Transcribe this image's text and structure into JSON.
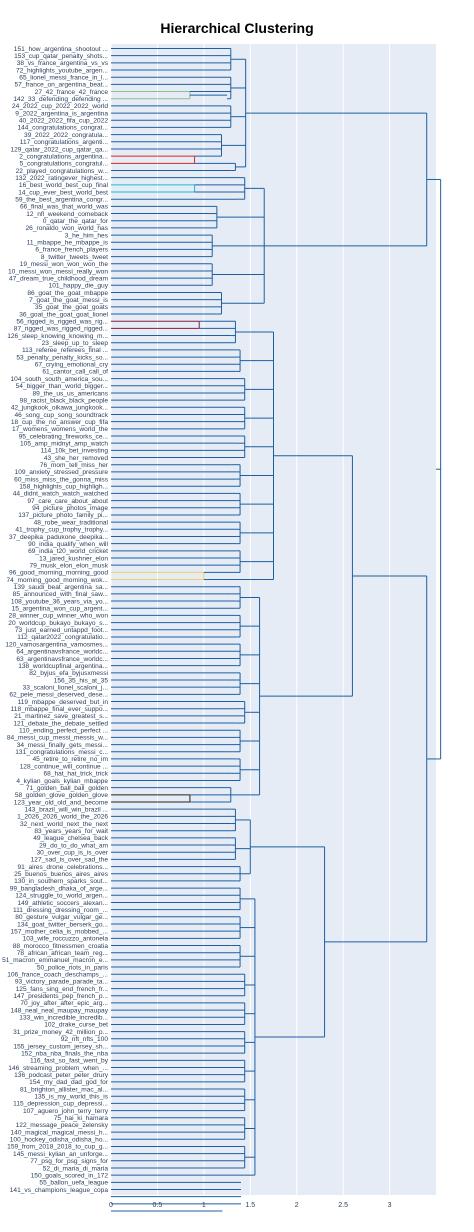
{
  "chart_data": {
    "type": "dendrogram",
    "title": "Hierarchical Clustering",
    "xlim": [
      0,
      3.5
    ],
    "xticks": [
      0,
      0.5,
      1,
      1.5,
      2,
      2.5,
      3
    ],
    "xtick_labels": [
      "0",
      "0.5",
      "1",
      "1.5",
      "2",
      "2.5",
      "3"
    ],
    "grid": true,
    "colors": {
      "plot_bg": "#e5ecf6",
      "grid": "#ffffff",
      "link": "#1f5fa0",
      "red": "#d62728",
      "cyan": "#17becf",
      "olive": "#8fbc8f",
      "maroon": "#8b1a3a",
      "gold": "#f0d060",
      "black": "#222222"
    },
    "leaves": [
      "151_how_argentina_shootout ...",
      "153_cup_qatar_penalty_shots...",
      "38_vs_france_argentina_vs_vs",
      "72_highlights_youtube_argen...",
      "65_lionel_messi_france_in_l...",
      "57_france_on_argentina_beat...",
      "27_42_france_42_france",
      "142_33_defending_defending ...",
      "24_2022_cup_2022_2022_world",
      "9_2022_argentina_is_argentina",
      "40_2022_2022_fifa_cup_2022",
      "144_congratulations_congrat...",
      "39_2022_2022_congratula...",
      "117_congratulations_argenti...",
      "129_qatar_2022_cup_qatar_qa...",
      "2_congratulations_argentina...",
      "5_congratulations_congratul...",
      "22_played_congratulations_w...",
      "132_2022_ratingever_highest...",
      "16_best_world_best_cup_final",
      "14_cup_ever_best_world_best",
      "59_the_best_argentina_congr...",
      "66_final_was_that_world_was",
      "12_nfl_weekend_comeback",
      "0_qatar_the_qatar_for",
      "26_ronaldo_won_world_has",
      "3_he_him_hes",
      "11_mbappe_he_mbappe_is",
      "6_france_french_players",
      "8_twitter_tweets_tweet",
      "19_messi_won_won_won_the",
      "10_messi_won_messi_really_won",
      "47_dream_true_childhood_dream",
      "101_happy_die_guy",
      "86_goat_the_goat_mbappe",
      "7_goat_the_goat_messi_is",
      "35_goat_the_goat_goats",
      "36_goat_the_goat_goat_lionel",
      "56_rigged_is_rigged_was_rig...",
      "87_rigged_was_rigged_rigged...",
      "126_sleep_knowing_knowing_m...",
      "23_sleep_up_to_sleep",
      "113_referee_referees_final ...",
      "53_penalty_penalty_kicks_so...",
      "67_crying_emotional_cry",
      "61_cantor_call_call_of",
      "104_south_south_america_sou...",
      "54_bigger_than_world_bigger...",
      "89_the_us_us_americans",
      "98_racist_black_black_people",
      "42_jungkook_oikawa_jungkook...",
      "46_song_cup_song_soundtrack",
      "18_cup_the_no_answer_cup_fifa",
      "17_womens_womens_world_the",
      "95_celebrating_fireworks_ce...",
      "105_amp_midnyt_amp_watch",
      "114_10k_bet_investing",
      "43_she_her_removed",
      "76_mom_tell_miss_her",
      "109_anxiety_stressed_pressure",
      "60_miss_miss_the_gonna_miss",
      "158_highlights_cup_highligh...",
      "44_didnt_watch_watch_watched",
      "97_care_care_about_about",
      "94_picture_photos_image",
      "137_picture_photo_family_pi...",
      "48_robe_wear_traditional",
      "41_trophy_cup_trophy_trophy...",
      "37_deepika_padukone_deepika...",
      "90_india_qualify_when_will",
      "69_india_t20_world_cricket",
      "13_jared_kushner_elon",
      "79_musk_elon_elon_musk",
      "96_good_morning_morning_good",
      "74_morning_good_morning_wok...",
      "139_saudi_beat_argentina_sa...",
      "85_announced_with_final_saw...",
      "108_youtube_36_years_via_yo...",
      "15_argentina_won_cup_argent...",
      "28_winner_cup_winner_who_won",
      "20_worldcup_bukayo_bukayo_s...",
      "73_just_earned_untappd_foot...",
      "112_qatar2022_congratulatio...",
      "120_vamosargentina_vamosmes...",
      "64_argentinavsfrance_worldc...",
      "63_argentinavsfrance_worldc...",
      "138_worldcupfinal_argentina...",
      "82_byjus_efa_byjusxmessi",
      "156_35_his_at_35",
      "33_scaloni_lionel_scaloni_j...",
      "62_pele_messi_deserved_dese...",
      "119_mbappe_deserved_but_in",
      "118_mbappe_final_ever_suppo...",
      "21_martinez_save_greatest_s...",
      "121_debate_the_debate_settled",
      "110_ending_perfect_perfect ...",
      "84_messi_cup_messi_messis_w...",
      "34_messi_finally_gets_messi...",
      "131_congratulations_messi_c...",
      "45_retire_to_retire_no_im",
      "128_continue_will_continue ...",
      "68_hat_hat_trick_trick",
      "4_kylian_goals_kylian_mbappe",
      "71_golden_ball_ball_golden",
      "58_golden_glove_golden_glove",
      "123_year_old_old_and_become",
      "143_brazil_will_win_brazil ...",
      "1_2026_2026_world_the_2026",
      "32_next_world_next_the_next",
      "83_years_years_for_wait",
      "49_league_chelsea_back",
      "29_do_to_do_what_am",
      "30_over_cup_is_is_over",
      "127_sad_is_over_sad_the",
      "91_aires_drone_celebrations...",
      "25_buenos_buenos_aires_aires",
      "130_in_southern_sparks_sout...",
      "99_bangladesh_dhaka_of_arge...",
      "124_struggle_to_world_argen...",
      "149_athletic_soccers_alexan...",
      "111_dressing_dressing_room_...",
      "80_gesture_vulgar_vulgar_ge...",
      "134_goat_twitter_berserk_go...",
      "157_mother_celia_is_mobbed_...",
      "103_wife_roccuzzo_antonela",
      "88_morocco_fitnessmen_croatia",
      "78_african_african_team_reg...",
      "51_macron_emmanuel_macron_e...",
      "50_police_riots_in_paris",
      "106_france_coach_deschamps_...",
      "93_victory_parade_parade_ta...",
      "125_fans_sing_end_french_fr...",
      "147_presidents_pep_french_p...",
      "70_joy_after_after_epic_arg...",
      "148_neal_neal_maupay_maupay",
      "133_win_incredible_incredib...",
      "102_drake_curse_bet",
      "31_prize_money_42_million_p...",
      "92_nft_nfts_100",
      "155_jersey_custom_jersey_sh...",
      "152_nba_nba_finals_the_nba",
      "116_fast_so_fast_went_by",
      "146_streaming_problem_when_...",
      "136_podcast_peter_peter_drury",
      "154_my_dad_dad_god_for",
      "81_brighton_allister_mac_al...",
      "135_is_my_world_this_is",
      "115_depression_cup_depressi...",
      "107_aguero_john_terry_terry",
      "75_hai_ki_hamara",
      "122_message_peace_zelensky",
      "140_magical_magical_messi_h...",
      "100_hockey_odisha_odisha_ho...",
      "159_from_2018_2018_to_cup_g...",
      "145_messi_kylian_an_unforge...",
      "77_psg_for_psg_signs_for",
      "52_di_maria_di_maria",
      "150_goals_scored_in_172",
      "55_ballon_uefa_league",
      "141_vs_champions_league_copa"
    ],
    "leaf_stems": [
      1.25,
      1.1,
      1.05,
      1.25,
      1.1,
      1.05,
      0.85,
      1.25,
      1.25,
      1.1,
      1.2,
      1.05,
      1.15,
      1.1,
      1.05,
      0.9,
      0.9,
      1.3,
      1.4,
      0.9,
      0.9,
      1.35,
      1.1,
      1.05,
      1.1,
      1.1,
      1.05,
      1.05,
      1.05,
      1.05,
      1.05,
      1.05,
      1.05,
      1.0,
      1.05,
      1.05,
      1.1,
      1.15,
      0.95,
      0.95,
      1.3,
      1.2,
      1.35,
      1.35,
      1.35,
      1.35,
      1.4,
      1.4,
      1.4,
      1.4,
      1.4,
      1.4,
      1.4,
      1.4,
      1.4,
      1.35,
      1.35,
      1.25,
      1.3,
      1.35,
      1.35,
      1.35,
      1.35,
      1.35,
      1.35,
      1.35,
      1.35,
      1.35,
      1.35,
      1.35,
      1.35,
      1.1,
      1.1,
      1.0,
      1.0,
      1.35,
      1.3,
      1.35,
      1.35,
      1.35,
      1.35,
      1.35,
      1.35,
      1.35,
      1.35,
      1.35,
      1.35,
      1.35,
      1.35,
      1.3,
      1.35,
      1.4,
      1.35,
      1.35,
      1.35,
      1.35,
      1.35,
      1.35,
      1.3,
      1.35,
      1.35,
      1.3,
      1.1,
      1.25,
      0.85,
      0.85,
      1.3,
      1.2,
      1.3,
      1.3,
      1.3,
      1.3,
      1.2,
      1.2,
      1.2,
      1.35,
      1.35,
      1.35,
      1.35,
      1.35,
      1.35,
      1.35,
      1.35,
      1.35,
      1.35,
      1.3,
      1.35,
      1.35,
      1.35,
      1.35,
      1.35,
      1.4,
      1.4,
      1.4,
      1.4,
      1.4,
      1.4,
      1.4,
      1.4,
      1.4,
      1.4,
      1.4,
      1.4,
      1.4,
      1.4,
      1.4,
      1.4,
      1.4,
      1.4,
      1.4,
      1.4,
      1.4,
      1.4,
      1.4,
      1.4,
      1.4,
      1.4,
      1.4,
      1.4,
      1.4,
      1.4,
      1.4,
      1.2
    ],
    "colored_links": [
      {
        "leaves": [
          6,
          7
        ],
        "height": 0.85,
        "color": "olive"
      },
      {
        "leaves": [
          15,
          16
        ],
        "height": 0.9,
        "color": "red"
      },
      {
        "leaves": [
          19,
          20
        ],
        "height": 0.9,
        "color": "cyan"
      },
      {
        "leaves": [
          38,
          39
        ],
        "height": 0.95,
        "color": "maroon"
      },
      {
        "leaves": [
          73,
          74
        ],
        "height": 1.0,
        "color": "gold"
      },
      {
        "leaves": [
          104,
          105
        ],
        "height": 0.85,
        "color": "black"
      }
    ],
    "groups": [
      {
        "range": [
          0,
          17
        ],
        "height": 1.45
      },
      {
        "range": [
          18,
          37
        ],
        "height": 1.65
      },
      {
        "range": [
          38,
          74
        ],
        "height": 1.75
      },
      {
        "range": [
          75,
          105
        ],
        "height": 1.6
      },
      {
        "range": [
          106,
          116
        ],
        "height": 1.5
      },
      {
        "range": [
          117,
          157
        ],
        "height": 1.55
      }
    ],
    "top_links": [
      {
        "a": 0,
        "b": 1,
        "height": 3.4
      },
      {
        "a": 2,
        "b": 3,
        "height": 2.6
      },
      {
        "a": 4,
        "b": 5,
        "height": 2.3
      },
      {
        "a": "L2",
        "b": "L3",
        "height": 3.4
      },
      {
        "a": "L1",
        "b": "L4",
        "height": 3.55
      }
    ]
  }
}
